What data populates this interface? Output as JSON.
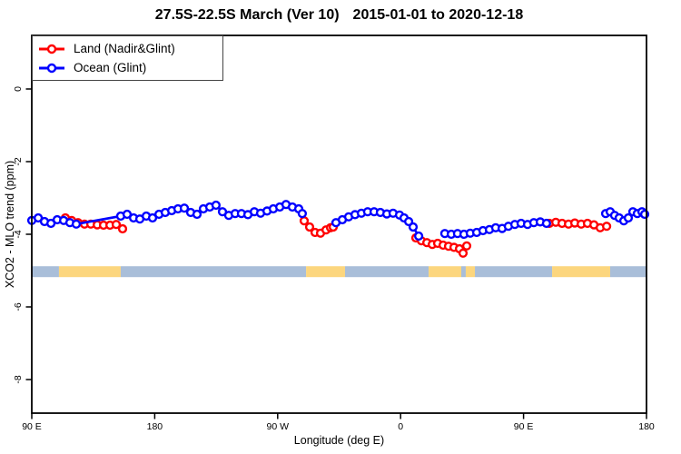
{
  "title_left": "27.5S-22.5S March (Ver 10)",
  "title_right": "2015-01-01 to 2020-12-18",
  "legend": [
    {
      "label": "Land (Nadir&Glint)",
      "color": "#FF0000"
    },
    {
      "label": "Ocean (Glint)",
      "color": "#0000FF"
    }
  ],
  "chart_data": {
    "type": "line",
    "title": "27.5S-22.5S March (Ver 10)   2015-01-01 to 2020-12-18",
    "xlabel": "Longitude (deg E)",
    "ylabel": "XCO2 - MLO trend (ppm)",
    "xlim": [
      90,
      540
    ],
    "ylim": [
      -8.925,
      1.475
    ],
    "grid": false,
    "legend_position": "top-left",
    "axis_note": "x axis is longitude wrapping eastward: 90E to 180, 90W, 0, 90E, 180; stored as continuous 90..540 deg",
    "x_ticks": [
      {
        "value": 90,
        "label": "90 E"
      },
      {
        "value": 180,
        "label": "180"
      },
      {
        "value": 270,
        "label": "90 W"
      },
      {
        "value": 360,
        "label": "0"
      },
      {
        "value": 450,
        "label": "90 E"
      },
      {
        "value": 540,
        "label": "180"
      }
    ],
    "y_ticks": [
      {
        "value": 0,
        "label": "0"
      },
      {
        "value": -2,
        "label": "-2"
      },
      {
        "value": -4,
        "label": "-4"
      },
      {
        "value": -6,
        "label": "-6"
      },
      {
        "value": -8,
        "label": "-8"
      }
    ],
    "series": [
      {
        "name": "Land (Nadir&Glint)",
        "color": "#FF0000",
        "marker": "open-circle",
        "segments": [
          [
            [
              114.6,
              -3.55
            ],
            [
              119.2,
              -3.62
            ],
            [
              123.9,
              -3.68
            ],
            [
              128.6,
              -3.72
            ],
            [
              133.2,
              -3.72
            ],
            [
              137.9,
              -3.74
            ],
            [
              142.5,
              -3.75
            ],
            [
              147.2,
              -3.75
            ],
            [
              151.8,
              -3.73
            ],
            [
              156.5,
              -3.85
            ]
          ],
          [
            [
              289.4,
              -3.63
            ],
            [
              293.4,
              -3.8
            ],
            [
              297.4,
              -3.95
            ],
            [
              301.4,
              -3.97
            ],
            [
              305.4,
              -3.88
            ],
            [
              308.7,
              -3.82
            ],
            [
              310.7,
              -3.8
            ]
          ],
          [
            [
              371.2,
              -4.1
            ],
            [
              375.2,
              -4.18
            ],
            [
              379.2,
              -4.23
            ],
            [
              383.2,
              -4.28
            ],
            [
              387.1,
              -4.25
            ],
            [
              391.1,
              -4.3
            ],
            [
              395.1,
              -4.33
            ],
            [
              399.1,
              -4.36
            ],
            [
              403.1,
              -4.4
            ],
            [
              405.7,
              -4.52
            ],
            [
              408.4,
              -4.32
            ]
          ],
          [
            [
              468.9,
              -3.7
            ],
            [
              473.6,
              -3.67
            ],
            [
              478.2,
              -3.7
            ],
            [
              482.9,
              -3.72
            ],
            [
              487.5,
              -3.69
            ],
            [
              492.2,
              -3.72
            ],
            [
              496.8,
              -3.7
            ],
            [
              501.5,
              -3.74
            ],
            [
              506.1,
              -3.82
            ],
            [
              510.8,
              -3.78
            ]
          ]
        ]
      },
      {
        "name": "Ocean (Glint)",
        "color": "#0000FF",
        "marker": "open-circle",
        "segments": [
          [
            [
              90.0,
              -3.62
            ],
            [
              94.7,
              -3.55
            ],
            [
              99.3,
              -3.65
            ],
            [
              104.0,
              -3.7
            ],
            [
              108.6,
              -3.6
            ],
            [
              113.3,
              -3.62
            ],
            [
              117.9,
              -3.68
            ],
            [
              122.6,
              -3.72
            ],
            [
              155.1,
              -3.5
            ],
            [
              159.8,
              -3.45
            ],
            [
              164.5,
              -3.55
            ],
            [
              169.1,
              -3.58
            ],
            [
              173.8,
              -3.5
            ],
            [
              178.4,
              -3.55
            ],
            [
              183.1,
              -3.45
            ],
            [
              187.7,
              -3.4
            ],
            [
              192.4,
              -3.35
            ],
            [
              197.0,
              -3.3
            ],
            [
              201.7,
              -3.28
            ],
            [
              206.3,
              -3.4
            ],
            [
              211.0,
              -3.45
            ],
            [
              215.6,
              -3.3
            ],
            [
              220.3,
              -3.25
            ],
            [
              224.9,
              -3.2
            ],
            [
              229.6,
              -3.38
            ],
            [
              234.2,
              -3.48
            ],
            [
              238.9,
              -3.43
            ],
            [
              243.5,
              -3.43
            ],
            [
              248.2,
              -3.46
            ],
            [
              252.9,
              -3.38
            ],
            [
              257.5,
              -3.42
            ],
            [
              262.2,
              -3.36
            ],
            [
              266.8,
              -3.3
            ],
            [
              271.5,
              -3.25
            ],
            [
              276.1,
              -3.18
            ],
            [
              280.8,
              -3.25
            ],
            [
              285.4,
              -3.3
            ],
            [
              288.0,
              -3.43
            ]
          ],
          [
            [
              312.7,
              -3.68
            ],
            [
              317.3,
              -3.6
            ],
            [
              322.0,
              -3.52
            ],
            [
              326.6,
              -3.46
            ],
            [
              331.3,
              -3.42
            ],
            [
              335.9,
              -3.38
            ],
            [
              340.6,
              -3.38
            ],
            [
              345.2,
              -3.4
            ],
            [
              349.9,
              -3.44
            ],
            [
              354.5,
              -3.42
            ],
            [
              359.2,
              -3.47
            ],
            [
              362.5,
              -3.55
            ],
            [
              365.9,
              -3.65
            ],
            [
              369.2,
              -3.8
            ],
            [
              373.2,
              -4.05
            ]
          ],
          [
            [
              392.4,
              -3.98
            ],
            [
              397.1,
              -4.0
            ],
            [
              401.7,
              -3.98
            ],
            [
              406.4,
              -4.0
            ],
            [
              411.0,
              -3.97
            ],
            [
              415.7,
              -3.95
            ],
            [
              420.3,
              -3.9
            ],
            [
              425.0,
              -3.87
            ],
            [
              429.6,
              -3.82
            ],
            [
              434.3,
              -3.84
            ],
            [
              438.9,
              -3.78
            ],
            [
              443.6,
              -3.73
            ],
            [
              448.2,
              -3.7
            ],
            [
              452.9,
              -3.73
            ],
            [
              457.5,
              -3.68
            ],
            [
              462.2,
              -3.66
            ],
            [
              466.8,
              -3.7
            ]
          ],
          [
            [
              510.1,
              -3.43
            ],
            [
              513.4,
              -3.38
            ],
            [
              516.7,
              -3.48
            ],
            [
              520.0,
              -3.55
            ],
            [
              523.4,
              -3.63
            ],
            [
              526.7,
              -3.55
            ],
            [
              530.0,
              -3.38
            ],
            [
              533.3,
              -3.43
            ],
            [
              536.7,
              -3.38
            ],
            [
              538.7,
              -3.45
            ]
          ]
        ]
      }
    ],
    "surface_strip": {
      "description": "land/ocean indicator band along longitude",
      "y_top": -4.88,
      "y_bottom": -5.18,
      "colors": {
        "ocean": "#A9BED9",
        "land": "#FCD67E"
      },
      "segments": [
        {
          "from": 90.0,
          "to": 109.9,
          "surface": "ocean"
        },
        {
          "from": 109.9,
          "to": 155.1,
          "surface": "land"
        },
        {
          "from": 155.1,
          "to": 290.8,
          "surface": "ocean"
        },
        {
          "from": 290.8,
          "to": 319.3,
          "surface": "land"
        },
        {
          "from": 319.3,
          "to": 380.5,
          "surface": "ocean"
        },
        {
          "from": 380.5,
          "to": 404.4,
          "surface": "land"
        },
        {
          "from": 404.4,
          "to": 407.7,
          "surface": "ocean"
        },
        {
          "from": 407.7,
          "to": 414.4,
          "surface": "land"
        },
        {
          "from": 414.4,
          "to": 470.9,
          "surface": "ocean"
        },
        {
          "from": 470.9,
          "to": 513.4,
          "surface": "land"
        },
        {
          "from": 513.4,
          "to": 540.0,
          "surface": "ocean"
        }
      ]
    }
  }
}
